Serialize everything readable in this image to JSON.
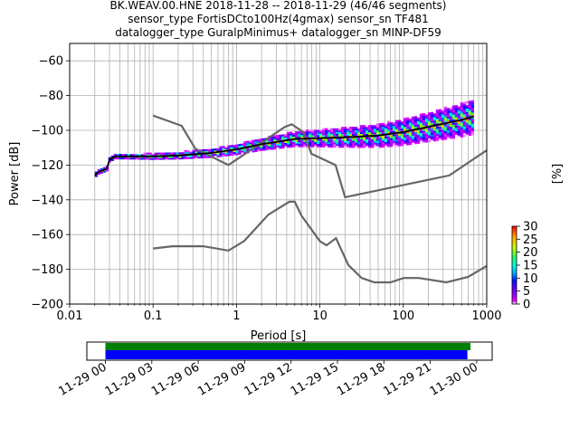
{
  "chart_data": {
    "type": "heatmap",
    "title": {
      "line1": "BK.WEAV.00.HNE   2018-11-28 -- 2018-11-29  (46/46 segments)",
      "line2": "sensor_type FortisDCto100Hz(4gmax) sensor_sn TF481",
      "line3": "datalogger_type GuralpMinimus+ datalogger_sn MINP-DF59"
    },
    "xlabel": "Period [s]",
    "ylabel": "Power [dB]",
    "xscale": "log",
    "xlim": [
      0.01,
      1000
    ],
    "ylim": [
      -200,
      -50
    ],
    "x_ticks": [
      {
        "value": 0.01,
        "label": "0.01"
      },
      {
        "value": 0.1,
        "label": "0.1"
      },
      {
        "value": 1,
        "label": "1"
      },
      {
        "value": 10,
        "label": "10"
      },
      {
        "value": 100,
        "label": "100"
      },
      {
        "value": 1000,
        "label": "1000"
      }
    ],
    "y_ticks": [
      {
        "value": -60,
        "label": "−60"
      },
      {
        "value": -80,
        "label": "−80"
      },
      {
        "value": -100,
        "label": "−100"
      },
      {
        "value": -120,
        "label": "−120"
      },
      {
        "value": -140,
        "label": "−140"
      },
      {
        "value": -160,
        "label": "−160"
      },
      {
        "value": -180,
        "label": "−180"
      },
      {
        "value": -200,
        "label": "−200"
      }
    ],
    "grid": true,
    "noise_model_high": {
      "x": [
        0.1,
        0.22,
        0.32,
        0.8,
        3.8,
        4.6,
        6.3,
        7.9,
        15.4,
        20,
        354.8,
        1000
      ],
      "y": [
        -91.5,
        -97.4,
        -110.5,
        -120,
        -98,
        -96.5,
        -101,
        -113.5,
        -120,
        -138.5,
        -126,
        -111.5
      ]
    },
    "noise_model_low": {
      "x": [
        0.1,
        0.17,
        0.4,
        0.8,
        1.24,
        2.4,
        4.3,
        5,
        6,
        10,
        12,
        15.6,
        21.9,
        31.6,
        45,
        70,
        101,
        154,
        328,
        600,
        1000
      ],
      "y": [
        -168,
        -166.7,
        -166.7,
        -169.2,
        -163.7,
        -148.6,
        -141.1,
        -141.1,
        -149,
        -163.8,
        -166.2,
        -162.1,
        -177.5,
        -185,
        -187.5,
        -187.5,
        -185,
        -185,
        -187.5,
        -184.4,
        -178
      ]
    },
    "median": {
      "x": [
        0.02,
        0.022,
        0.025,
        0.028,
        0.03,
        0.035,
        0.05,
        0.1,
        0.2,
        0.5,
        1,
        2,
        5,
        10,
        20,
        50,
        100,
        200,
        500,
        700
      ],
      "y": [
        -126,
        -124,
        -123,
        -122,
        -117,
        -115,
        -115,
        -115,
        -114.5,
        -113,
        -111,
        -108,
        -105,
        -104.5,
        -104,
        -103,
        -101,
        -98,
        -94,
        -92
      ]
    },
    "colorbar": {
      "label": "[%]",
      "range": [
        0,
        30
      ],
      "ticks": [
        0,
        5,
        10,
        15,
        20,
        25,
        30
      ]
    },
    "coverage": {
      "x_ticks": [
        "11-29 00",
        "11-29 03",
        "11-29 06",
        "11-29 09",
        "11-29 12",
        "11-29 15",
        "11-29 18",
        "11-29 21",
        "11-30 00"
      ],
      "x_hours": [
        0,
        3,
        6,
        9,
        12,
        15,
        18,
        21,
        24
      ],
      "xlim_hours": [
        -1.2,
        25
      ],
      "bars": [
        {
          "start_hour": 0,
          "end_hour": 23.6,
          "color": "#008000"
        },
        {
          "start_hour": 0,
          "end_hour": 23.4,
          "color": "#0000ff"
        }
      ]
    }
  }
}
